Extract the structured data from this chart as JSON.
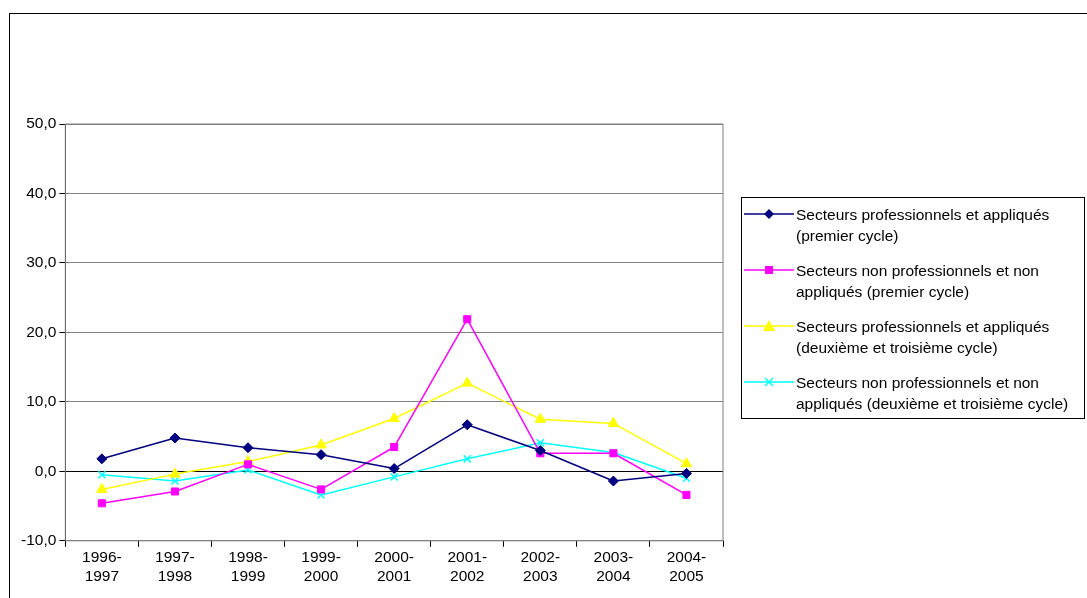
{
  "chart_data": {
    "type": "line",
    "categories": [
      "1996-1997",
      "1997-1998",
      "1998-1999",
      "1999-2000",
      "2000-2001",
      "2001-2002",
      "2002-2003",
      "2003-2004",
      "2004-2005"
    ],
    "series": [
      {
        "name": "Secteurs professionnels et appliqués (premier cycle)",
        "color": "#000080",
        "marker": "diamond",
        "values": [
          1.8,
          4.8,
          3.4,
          2.4,
          0.4,
          6.7,
          3.0,
          -1.4,
          -0.3
        ]
      },
      {
        "name": "Secteurs non professionnels et non appliqués (premier cycle)",
        "color": "#ff00ff",
        "marker": "square",
        "values": [
          -4.6,
          -2.9,
          1.0,
          -2.6,
          3.5,
          21.9,
          2.6,
          2.6,
          -3.4
        ]
      },
      {
        "name": "Secteurs professionnels et appliqués (deuxième et troisième cycle)",
        "color": "#ffff00",
        "marker": "triangle",
        "values": [
          -2.6,
          -0.4,
          1.4,
          3.8,
          7.6,
          12.7,
          7.5,
          6.9,
          1.1
        ]
      },
      {
        "name": "Secteurs non professionnels et non appliqués (deuxième et troisième cycle)",
        "color": "#00ffff",
        "marker": "cross",
        "values": [
          -0.5,
          -1.4,
          0.2,
          -3.4,
          -0.8,
          1.8,
          4.1,
          2.7,
          -1.0
        ]
      }
    ],
    "ylim": [
      -10,
      50
    ],
    "yticks": [
      {
        "value": -10,
        "label": "-10,0"
      },
      {
        "value": 0,
        "label": "0,0"
      },
      {
        "value": 10,
        "label": "10,0"
      },
      {
        "value": 20,
        "label": "20,0"
      },
      {
        "value": 30,
        "label": "30,0"
      },
      {
        "value": 40,
        "label": "40,0"
      },
      {
        "value": 50,
        "label": "50,0"
      }
    ],
    "grid": "y",
    "legend": "right",
    "line_style": "solid"
  }
}
